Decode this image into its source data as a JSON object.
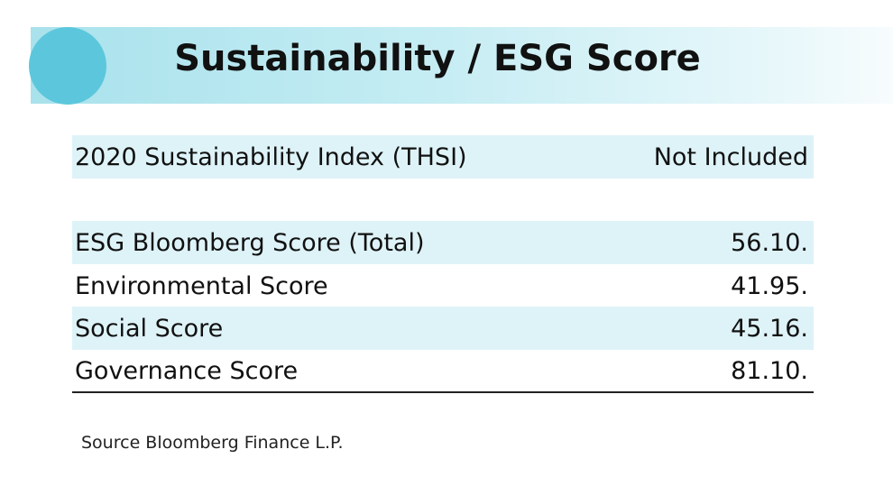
{
  "header": {
    "title": "Sustainability / ESG Score"
  },
  "index_row": {
    "label": "2020 Sustainability Index (THSI)",
    "value": "Not Included"
  },
  "table": {
    "rows": [
      [
        "ESG Bloomberg Score (Total)",
        "56.10."
      ],
      [
        "Environmental Score",
        "41.95."
      ],
      [
        "Social Score",
        "45.16."
      ],
      [
        "Governance Score",
        "81.10."
      ]
    ]
  },
  "source": "Source Bloomberg Finance L.P."
}
